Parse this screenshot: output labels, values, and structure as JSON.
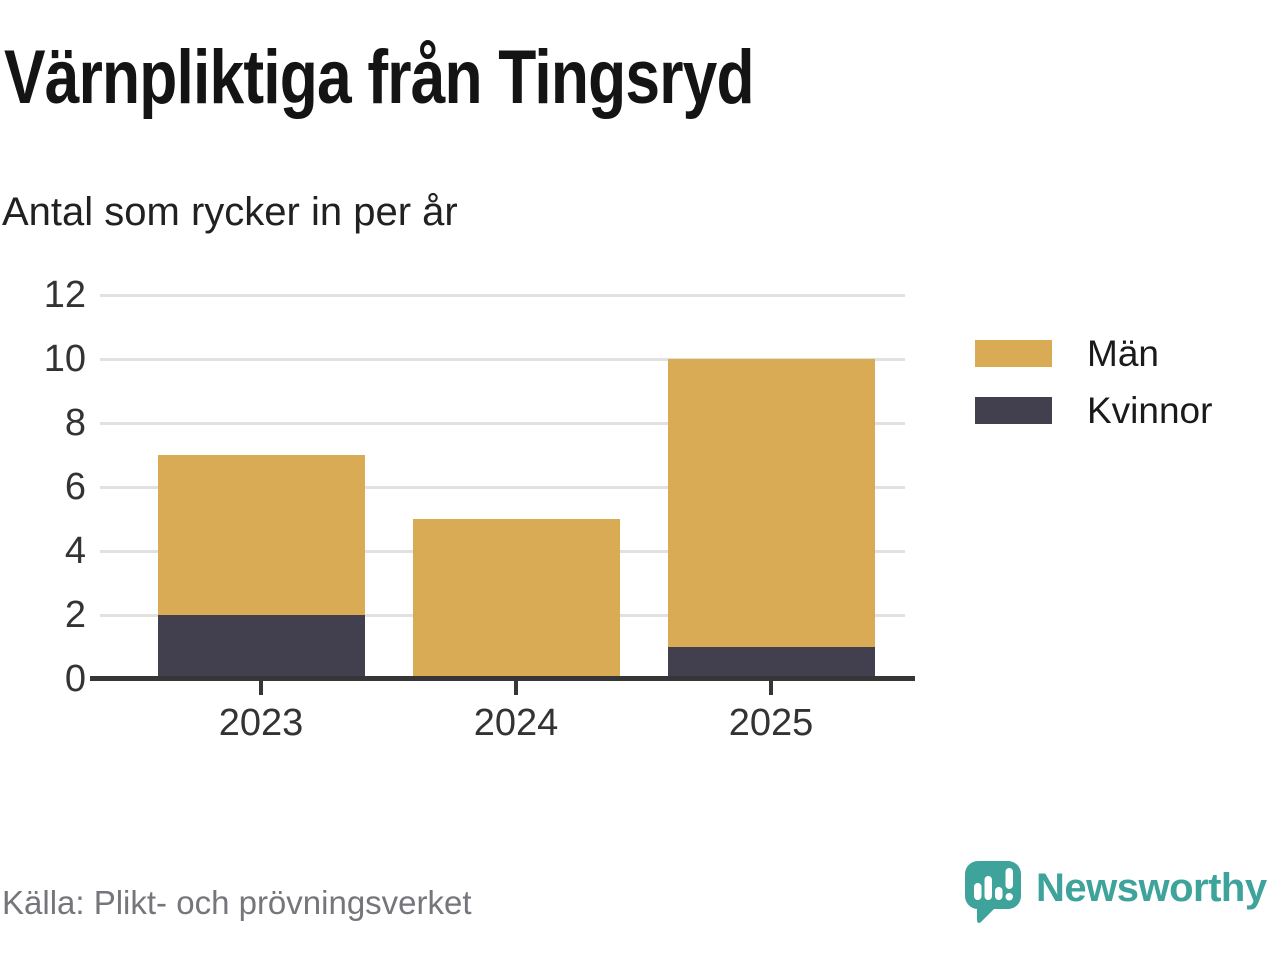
{
  "title": "Värnpliktiga från Tingsryd",
  "subtitle": "Antal som rycker in per år",
  "source": "Källa: Plikt- och prövningsverket",
  "brand": {
    "name": "Newsworthy",
    "color": "#3EA39B",
    "icon": "bar-chart-speech-bubble-icon"
  },
  "chart_data": {
    "type": "bar",
    "stacked": true,
    "title": "Värnpliktiga från Tingsryd",
    "subtitle": "Antal som rycker in per år",
    "categories": [
      "2023",
      "2024",
      "2025"
    ],
    "series": [
      {
        "name": "Män",
        "color": "#D9AB55",
        "values": [
          5,
          5,
          9
        ]
      },
      {
        "name": "Kvinnor",
        "color": "#423F4E",
        "values": [
          2,
          0,
          1
        ]
      }
    ],
    "stack_totals": [
      7,
      5,
      10
    ],
    "ylim": [
      0,
      12
    ],
    "yticks": [
      0,
      2,
      4,
      6,
      8,
      10,
      12
    ],
    "grid": true,
    "legend_position": "right",
    "grid_color": "#E1E1E1",
    "axis_color": "#363636",
    "tick_label_color": "#333333"
  }
}
